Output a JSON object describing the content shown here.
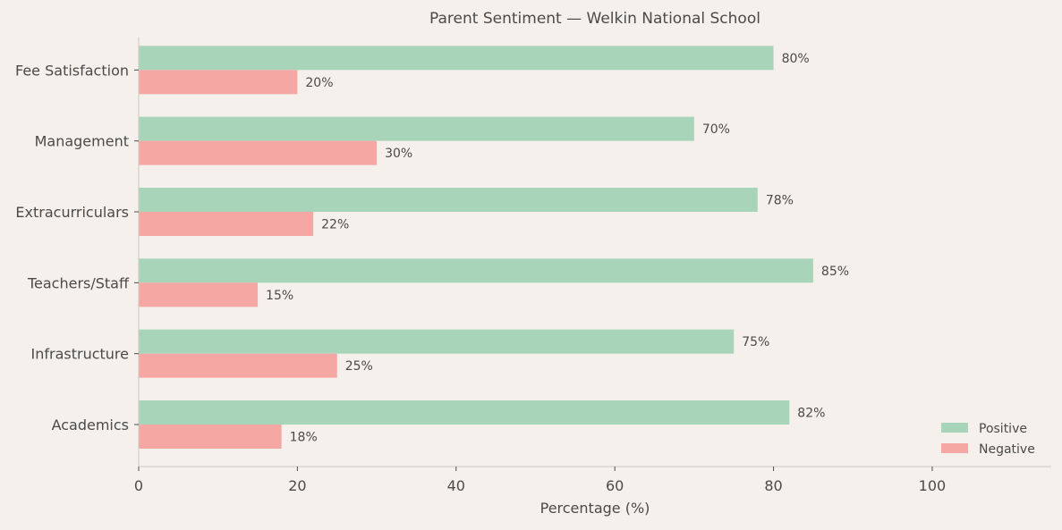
{
  "chart_data": {
    "type": "bar",
    "orientation": "horizontal",
    "title": "Parent Sentiment — Welkin National School",
    "xlabel": "Percentage (%)",
    "ylabel": "",
    "categories": [
      "Academics",
      "Infrastructure",
      "Teachers/Staff",
      "Extracurriculars",
      "Management",
      "Fee Satisfaction"
    ],
    "series": [
      {
        "name": "Positive",
        "color": "#a8d5b9",
        "values": [
          82,
          75,
          85,
          78,
          70,
          80
        ]
      },
      {
        "name": "Negative",
        "color": "#f5a7a3",
        "values": [
          18,
          25,
          15,
          22,
          30,
          20
        ]
      }
    ],
    "value_label_suffix": "%",
    "xlim": [
      0,
      115
    ],
    "xticks": [
      0,
      20,
      40,
      60,
      80,
      100
    ],
    "grid": false,
    "legend_position": "bottom-right"
  }
}
